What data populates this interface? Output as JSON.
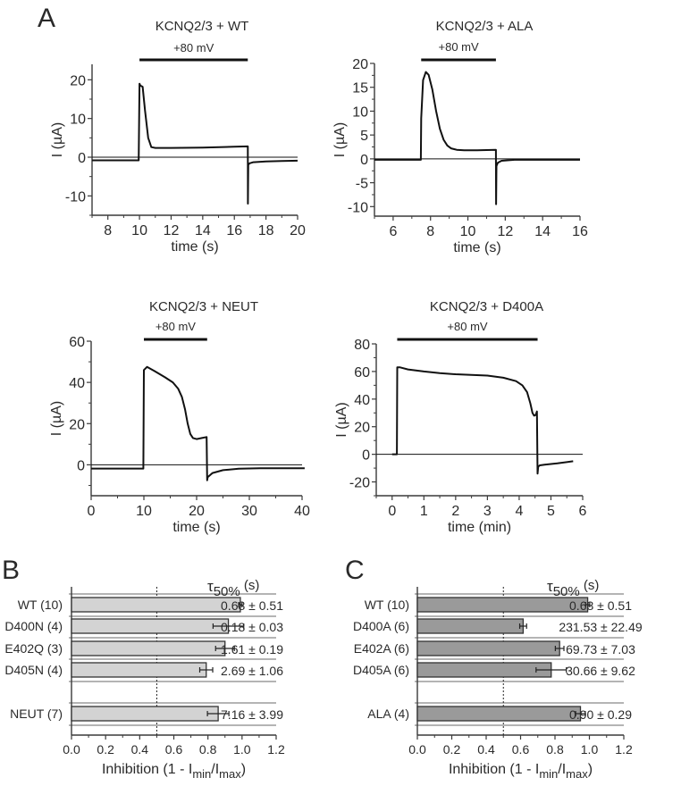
{
  "chart_data": [
    {
      "id": "A1",
      "panel_label": "A",
      "type": "line",
      "title": "KCNQ2/3 + WT",
      "stimulus_label": "+80 mV",
      "stimulus_interval": [
        10.0,
        16.85
      ],
      "xlabel": "time (s)",
      "ylabel": "I (µA)",
      "xlim": [
        7,
        20
      ],
      "ylim": [
        -15,
        24
      ],
      "xticks": [
        8,
        10,
        12,
        14,
        16,
        18,
        20
      ],
      "yticks": [
        -10,
        0,
        10,
        20
      ],
      "zero_line": true,
      "series": [
        {
          "name": "trace",
          "x": [
            7,
            9.95,
            10.0,
            10.05,
            10.2,
            10.35,
            10.55,
            10.75,
            11.0,
            12,
            14,
            16,
            16.85,
            16.86,
            16.88,
            16.95,
            17.2,
            18,
            19,
            20
          ],
          "y": [
            -0.8,
            -0.8,
            19,
            18.5,
            18.2,
            12,
            5,
            2.6,
            2.4,
            2.4,
            2.5,
            2.7,
            2.8,
            -12,
            -2,
            -1.6,
            -1.3,
            -1.1,
            -1.0,
            -0.9
          ]
        }
      ]
    },
    {
      "id": "A2",
      "type": "line",
      "title": "KCNQ2/3 + ALA",
      "stimulus_label": "+80 mV",
      "stimulus_interval": [
        7.5,
        11.5
      ],
      "xlabel": "time (s)",
      "ylabel": "I (µA)",
      "xlim": [
        5,
        16
      ],
      "ylim": [
        -12,
        20
      ],
      "xticks": [
        6,
        8,
        10,
        12,
        14,
        16
      ],
      "yticks": [
        -10,
        -5,
        0,
        5,
        10,
        15,
        20
      ],
      "zero_line": true,
      "series": [
        {
          "name": "trace",
          "x": [
            5,
            7.48,
            7.5,
            7.52,
            7.6,
            7.75,
            7.9,
            8.1,
            8.3,
            8.5,
            8.7,
            8.9,
            9.1,
            9.4,
            9.8,
            10.5,
            11.5,
            11.51,
            11.53,
            11.6,
            11.8,
            12.5,
            16
          ],
          "y": [
            -0.2,
            -0.2,
            8.5,
            10,
            16.5,
            18.2,
            17.6,
            14.5,
            10,
            6.3,
            4.0,
            2.8,
            2.2,
            1.9,
            1.8,
            1.8,
            1.9,
            -9.5,
            -1.5,
            -0.8,
            -0.4,
            -0.2,
            -0.2
          ]
        }
      ]
    },
    {
      "id": "A3",
      "type": "line",
      "title": "KCNQ2/3 + NEUT",
      "stimulus_label": "+80 mV",
      "stimulus_interval": [
        10.0,
        22.0
      ],
      "xlabel": "time (s)",
      "ylabel": "I (µA)",
      "xlim": [
        0,
        40
      ],
      "ylim": [
        -15,
        60
      ],
      "xticks": [
        0,
        10,
        20,
        30,
        40
      ],
      "yticks": [
        0,
        20,
        40,
        60
      ],
      "zero_line": true,
      "series": [
        {
          "name": "trace",
          "x": [
            0,
            9.9,
            10.0,
            10.6,
            12,
            14,
            15.5,
            16.5,
            17.2,
            17.8,
            18.3,
            18.8,
            19.3,
            20,
            21,
            21.9,
            22.0,
            22.1,
            23,
            25,
            28,
            32,
            40.5
          ],
          "y": [
            -1.8,
            -1.8,
            46,
            47.5,
            45.5,
            42.5,
            40,
            37,
            33,
            27,
            20,
            15,
            13,
            12.5,
            13,
            13.5,
            -7.5,
            -6,
            -4,
            -2.6,
            -1.9,
            -1.7,
            -1.7
          ]
        }
      ]
    },
    {
      "id": "A4",
      "type": "line",
      "title": "KCNQ2/3 + D400A",
      "stimulus_label": "+80 mV",
      "stimulus_interval": [
        0.16,
        4.58
      ],
      "xlabel": "time (min)",
      "ylabel": "I (µA)",
      "xlim": [
        -0.5,
        6
      ],
      "ylim": [
        -30,
        80
      ],
      "xticks": [
        0,
        1,
        2,
        3,
        4,
        5,
        6
      ],
      "yticks": [
        -20,
        0,
        20,
        40,
        60,
        80
      ],
      "zero_line": true,
      "series": [
        {
          "name": "trace",
          "x": [
            0.0,
            0.15,
            0.16,
            0.25,
            0.5,
            1,
            1.5,
            2,
            2.5,
            3,
            3.5,
            3.9,
            4.1,
            4.25,
            4.35,
            4.42,
            4.47,
            4.52,
            4.56,
            4.58,
            4.6,
            4.65,
            4.8,
            5.2,
            5.7
          ],
          "y": [
            0,
            0,
            63,
            63,
            61.5,
            60,
            58.8,
            58,
            57.5,
            57,
            55.5,
            53,
            50,
            45,
            37,
            30,
            28,
            28.5,
            31,
            -14,
            -9,
            -8,
            -7.5,
            -6.5,
            -5
          ]
        }
      ]
    },
    {
      "id": "B",
      "panel_label": "B",
      "type": "bar",
      "orientation": "horizontal",
      "xlabel": "Inhibition (1 - I",
      "xlabel_sub1": "min",
      "xlabel_mid": "/I",
      "xlabel_sub2": "max",
      "xlabel_end": ")",
      "xlim": [
        0,
        1.2
      ],
      "xticks": [
        "0.0",
        "0.2",
        "0.4",
        "0.6",
        "0.8",
        "1.0",
        "1.2"
      ],
      "reference_line": 0.5,
      "right_header_main": "τ",
      "right_header_sub": "50%",
      "right_header_unit": " (s)",
      "bar_color": "#d3d3d3",
      "categories": [
        "WT (10)",
        "D400N (4)",
        "E402Q (3)",
        "D405N (4)",
        "NEUT (7)"
      ],
      "values": [
        0.99,
        0.92,
        0.9,
        0.79,
        0.86
      ],
      "errors": [
        0.01,
        0.09,
        0.055,
        0.038,
        0.063
      ],
      "tau_labels": [
        "0.68 ± 0.51",
        "0.18 ± 0.03",
        "1.61 ± 0.19",
        "2.69 ± 1.06",
        "7.16 ± 3.99"
      ]
    },
    {
      "id": "C",
      "panel_label": "C",
      "type": "bar",
      "orientation": "horizontal",
      "xlabel": "Inhibition (1 - I",
      "xlabel_sub1": "min",
      "xlabel_mid": "/I",
      "xlabel_sub2": "max",
      "xlabel_end": ")",
      "xlim": [
        0,
        1.2
      ],
      "xticks": [
        "0.0",
        "0.2",
        "0.4",
        "0.6",
        "0.8",
        "1.0",
        "1.2"
      ],
      "reference_line": 0.5,
      "right_header_main": "τ",
      "right_header_sub": "50%",
      "right_header_unit": " (s)",
      "bar_color": "#9a9a9a",
      "categories": [
        "WT (10)",
        "D400A (6)",
        "E402A (6)",
        "D405A (6)",
        "ALA (4)"
      ],
      "values": [
        0.99,
        0.615,
        0.827,
        0.778,
        0.948
      ],
      "errors": [
        0.012,
        0.02,
        0.025,
        0.088,
        0.028
      ],
      "tau_labels": [
        "0.68 ± 0.51",
        "231.53 ± 22.49",
        "69.73 ± 7.03",
        "30.66 ± 9.62",
        "0.90 ± 0.29"
      ]
    }
  ]
}
